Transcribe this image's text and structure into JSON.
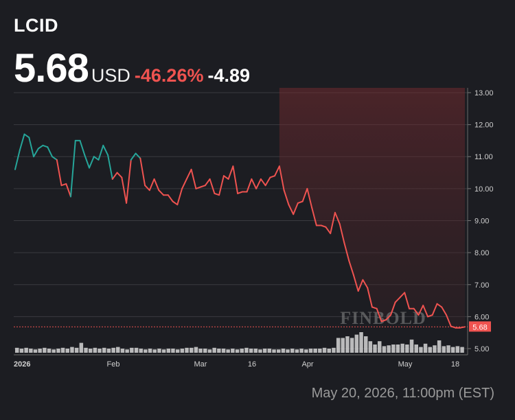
{
  "header": {
    "ticker": "LCID",
    "price": "5.68",
    "currency": "USD",
    "percent_change": "-46.26%",
    "abs_change": "-4.89"
  },
  "colors": {
    "up": "#26a69a",
    "down": "#ef5350",
    "background": "#1c1d22",
    "grid": "#3a3b40"
  },
  "watermark": "FINBOLD",
  "timestamp": "May 20, 2026, 11:00pm (EST)",
  "chart_data": {
    "type": "line",
    "x_tick_labels": [
      "2026",
      "Feb",
      "Mar",
      "16",
      "Apr",
      "May",
      "18"
    ],
    "y_ticks": [
      "5.00",
      "6.00",
      "7.00",
      "8.00",
      "9.00",
      "10.00",
      "11.00",
      "12.00",
      "13.00"
    ],
    "ylim": [
      4.85,
      13.15
    ],
    "last_price_label": "5.68",
    "grid": true,
    "series": [
      {
        "values": [
          10.6,
          11.2,
          11.7,
          11.6,
          11.0,
          11.25,
          11.35,
          11.3,
          11.0,
          10.9,
          10.1,
          10.15,
          9.75,
          11.5,
          11.5,
          11.05,
          10.65,
          11.0,
          10.9,
          11.35,
          11.05,
          10.3,
          10.5,
          10.35,
          9.55,
          10.9,
          11.1,
          10.95,
          10.1,
          9.95,
          10.3,
          9.95,
          9.8,
          9.8,
          9.6,
          9.5,
          10.0,
          10.3,
          10.6,
          10.0,
          10.05,
          10.1,
          10.3,
          9.85,
          9.8,
          10.4,
          10.3,
          10.7,
          9.85,
          9.9,
          9.9,
          10.3,
          10.0,
          10.3,
          10.1,
          10.35,
          10.4,
          10.7,
          9.95,
          9.5,
          9.2,
          9.55,
          9.6,
          10.0,
          9.4,
          8.85,
          8.85,
          8.8,
          8.6,
          9.25,
          8.9,
          8.3,
          7.75,
          7.3,
          6.8,
          7.15,
          6.9,
          6.3,
          6.25,
          5.85,
          5.9,
          6.05,
          6.45,
          6.6,
          6.75,
          6.25,
          6.25,
          6.05,
          6.35,
          6.0,
          6.05,
          6.4,
          6.3,
          6.05,
          5.7,
          5.65,
          5.65,
          5.68
        ]
      }
    ],
    "volume": [
      6,
      5,
      6,
      5,
      4,
      5,
      6,
      5,
      4,
      5,
      6,
      5,
      7,
      6,
      12,
      6,
      5,
      6,
      5,
      6,
      5,
      6,
      7,
      5,
      4,
      6,
      6,
      5,
      4,
      5,
      4,
      5,
      4,
      5,
      5,
      4,
      5,
      6,
      6,
      7,
      5,
      5,
      4,
      6,
      5,
      5,
      4,
      5,
      4,
      5,
      6,
      5,
      5,
      4,
      5,
      5,
      4,
      4,
      5,
      4,
      5,
      4,
      5,
      4,
      5,
      5,
      5,
      6,
      5,
      6,
      18,
      18,
      20,
      18,
      22,
      25,
      20,
      14,
      10,
      14,
      8,
      9,
      10,
      10,
      11,
      10,
      16,
      10,
      7,
      11,
      7,
      9,
      15,
      8,
      9,
      7,
      8,
      7
    ]
  }
}
